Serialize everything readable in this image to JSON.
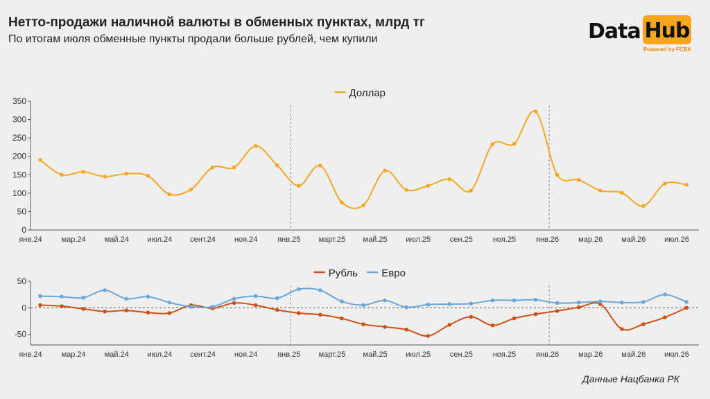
{
  "header": {
    "title": "Нетто-продажи наличной валюты в обменных пунктах, млрд тг",
    "subtitle": "По итогам июля обменные пункты продали больше рублей, чем купили"
  },
  "logo": {
    "word1": "Data",
    "word2": "Hub",
    "powered": "Powered by FCBK"
  },
  "footer": {
    "source": "Данные Нацбанка РК"
  },
  "colors": {
    "usd": "#f5a623",
    "rub": "#cf4f12",
    "eur": "#6aa6d8"
  },
  "chart_data": [
    {
      "type": "line",
      "legend_position": "top-center",
      "x_tick_labels": [
        "янв.24",
        "мар.24",
        "май.24",
        "июл.24",
        "сент.24",
        "ноя.24",
        "янв.25",
        "март.25",
        "май.25",
        "июл.25",
        "сен.25",
        "ноя.25",
        "янв.26",
        "мар.26",
        "май.26",
        "июл.26"
      ],
      "x": [
        "янв.24",
        "фев.24",
        "мар.24",
        "апр.24",
        "май.24",
        "июн.24",
        "июл.24",
        "авг.24",
        "сент.24",
        "окт.24",
        "ноя.24",
        "дек.24",
        "янв.25",
        "фев.25",
        "март.25",
        "апр.25",
        "май.25",
        "июн.25",
        "июл.25",
        "авг.25",
        "сен.25",
        "окт.25",
        "ноя.25",
        "дек.25",
        "янв.26",
        "фев.26",
        "мар.26",
        "апр.26",
        "май.26",
        "июн.26",
        "июл.26"
      ],
      "ylim": [
        0,
        350
      ],
      "y_ticks": [
        0,
        50,
        100,
        150,
        200,
        250,
        300,
        350
      ],
      "year_separators": [
        "янв.25",
        "янв.26"
      ],
      "series": [
        {
          "name": "Доллар",
          "values": [
            190,
            150,
            158,
            145,
            153,
            147,
            97,
            110,
            170,
            170,
            228,
            176,
            120,
            175,
            75,
            67,
            161,
            109,
            120,
            138,
            107,
            233,
            234,
            322,
            150,
            136,
            107,
            101,
            65,
            126,
            123
          ]
        }
      ]
    },
    {
      "type": "line",
      "legend_position": "top-center",
      "x_tick_labels": [
        "янв.24",
        "мар.24",
        "май.24",
        "июл.24",
        "сент.24",
        "ноя.24",
        "янв.25",
        "март.25",
        "май.25",
        "июл.25",
        "сен.25",
        "ноя.25",
        "янв.26",
        "мар.26",
        "май.26",
        "июл.26"
      ],
      "x": [
        "янв.24",
        "фев.24",
        "мар.24",
        "апр.24",
        "май.24",
        "июн.24",
        "июл.24",
        "авг.24",
        "сент.24",
        "окт.24",
        "ноя.24",
        "дек.24",
        "янв.25",
        "фев.25",
        "март.25",
        "апр.25",
        "май.25",
        "июн.25",
        "июл.25",
        "авг.25",
        "сен.25",
        "окт.25",
        "ноя.25",
        "дек.25",
        "янв.26",
        "фев.26",
        "мар.26",
        "апр.26",
        "май.26",
        "июн.26",
        "июл.26"
      ],
      "ylim": [
        -70,
        50
      ],
      "y_ticks": [
        -50,
        0,
        50
      ],
      "zero_line": "dashed",
      "year_separators": [
        "янв.25",
        "янв.26"
      ],
      "series": [
        {
          "name": "Рубль",
          "values": [
            5,
            3,
            -2,
            -7,
            -5,
            -9,
            -10,
            5,
            -1,
            9,
            5,
            -4,
            -10,
            -13,
            -20,
            -31,
            -36,
            -41,
            -53,
            -32,
            -17,
            -33,
            -20,
            -12,
            -6,
            1,
            7,
            -40,
            -31,
            -18,
            0
          ]
        },
        {
          "name": "Евро",
          "values": [
            22,
            21,
            19,
            33,
            17,
            21,
            10,
            2,
            2,
            17,
            22,
            18,
            35,
            33,
            12,
            5,
            14,
            1,
            6,
            7,
            8,
            14,
            14,
            15,
            9,
            10,
            12,
            10,
            11,
            25,
            11
          ]
        }
      ]
    }
  ]
}
